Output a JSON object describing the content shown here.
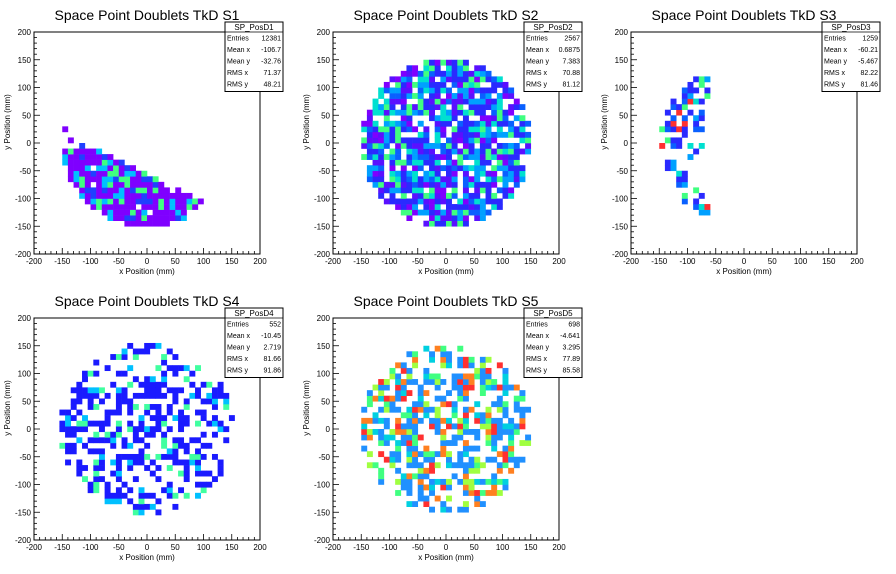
{
  "chart_data": [
    {
      "type": "heatmap",
      "title": "Space Point Doublets TkD S1",
      "xlabel": "x Position (mm)",
      "ylabel": "y Position (mm)",
      "xlim": [
        -200,
        200
      ],
      "ylim": [
        -200,
        200
      ],
      "xticks": [
        "-200",
        "-150",
        "-100",
        "-50",
        "0",
        "50",
        "100",
        "150",
        "200"
      ],
      "yticks": [
        "-200",
        "-150",
        "-100",
        "-50",
        "0",
        "50",
        "100",
        "150",
        "200"
      ],
      "stats": {
        "name": "SP_PosD1",
        "rows": [
          {
            "label": "Entries",
            "value": "12381"
          },
          {
            "label": "Mean x",
            "value": "-106.7"
          },
          {
            "label": "Mean y",
            "value": "-32.76"
          },
          {
            "label": "RMS x",
            "value": "71.37"
          },
          {
            "label": "RMS y",
            "value": "48.21"
          }
        ]
      },
      "pattern": "lower-band",
      "density": 0.95,
      "radius_mm": 150,
      "colors": [
        "#7f00ff",
        "#7f00ff",
        "#7f00ff",
        "#7f00ff",
        "#7f00ff",
        "#2040ff",
        "#00c0ff",
        "#40ff80"
      ]
    },
    {
      "type": "heatmap",
      "title": "Space Point Doublets TkD S2",
      "xlabel": "x Position (mm)",
      "ylabel": "y Position (mm)",
      "xlim": [
        -200,
        200
      ],
      "ylim": [
        -200,
        200
      ],
      "xticks": [
        "-200",
        "-150",
        "-100",
        "-50",
        "0",
        "50",
        "100",
        "150",
        "200"
      ],
      "yticks": [
        "-200",
        "-150",
        "-100",
        "-50",
        "0",
        "50",
        "100",
        "150",
        "200"
      ],
      "stats": {
        "name": "SP_PosD2",
        "rows": [
          {
            "label": "Entries",
            "value": "2567"
          },
          {
            "label": "Mean x",
            "value": "0.6875"
          },
          {
            "label": "Mean y",
            "value": "7.383"
          },
          {
            "label": "RMS x",
            "value": "70.88"
          },
          {
            "label": "RMS y",
            "value": "81.12"
          }
        ]
      },
      "pattern": "full-disk",
      "density": 0.8,
      "radius_mm": 150,
      "colors": [
        "#7f00ff",
        "#5a10ff",
        "#2a2aff",
        "#2a2aff",
        "#0a60ff",
        "#00a0ff",
        "#00e0d0",
        "#40ff80"
      ]
    },
    {
      "type": "heatmap",
      "title": "Space Point Doublets TkD S3",
      "xlabel": "x Position (mm)",
      "ylabel": "y Position (mm)",
      "xlim": [
        -200,
        200
      ],
      "ylim": [
        -200,
        200
      ],
      "xticks": [
        "-200",
        "-150",
        "-100",
        "-50",
        "0",
        "50",
        "100",
        "150",
        "200"
      ],
      "yticks": [
        "-200",
        "-150",
        "-100",
        "-50",
        "0",
        "50",
        "100",
        "150",
        "200"
      ],
      "stats": {
        "name": "SP_PosD3",
        "rows": [
          {
            "label": "Entries",
            "value": "1259"
          },
          {
            "label": "Mean x",
            "value": "-60.21"
          },
          {
            "label": "Mean y",
            "value": "-5.467"
          },
          {
            "label": "RMS x",
            "value": "82.22"
          },
          {
            "label": "RMS y",
            "value": "81.46"
          }
        ]
      },
      "pattern": "left-arc",
      "density": 0.45,
      "radius_mm": 150,
      "colors": [
        "#2a2aff",
        "#2a2aff",
        "#2a2aff",
        "#0a60ff",
        "#00a0ff",
        "#00e0d0",
        "#40ff80",
        "#ff3030"
      ]
    },
    {
      "type": "heatmap",
      "title": "Space Point Doublets TkD S4",
      "xlabel": "x Position (mm)",
      "ylabel": "y Position (mm)",
      "xlim": [
        -200,
        200
      ],
      "ylim": [
        -200,
        200
      ],
      "xticks": [
        "-200",
        "-150",
        "-100",
        "-50",
        "0",
        "50",
        "100",
        "150",
        "200"
      ],
      "yticks": [
        "-200",
        "-150",
        "-100",
        "-50",
        "0",
        "50",
        "100",
        "150",
        "200"
      ],
      "stats": {
        "name": "SP_PosD4",
        "rows": [
          {
            "label": "Entries",
            "value": "552"
          },
          {
            "label": "Mean x",
            "value": "-10.45"
          },
          {
            "label": "Mean y",
            "value": "2.719"
          },
          {
            "label": "RMS x",
            "value": "81.66"
          },
          {
            "label": "RMS y",
            "value": "91.86"
          }
        ]
      },
      "pattern": "sparse",
      "density": 0.45,
      "radius_mm": 155,
      "colors": [
        "#1a1aff",
        "#1a1aff",
        "#1a1aff",
        "#1a1aff",
        "#1a1aff",
        "#1a1aff",
        "#00c0ff",
        "#40ffa0"
      ]
    },
    {
      "type": "heatmap",
      "title": "Space Point Doublets TkD S5",
      "xlabel": "x Position (mm)",
      "ylabel": "y Position (mm)",
      "xlim": [
        -200,
        200
      ],
      "ylim": [
        -200,
        200
      ],
      "xticks": [
        "-200",
        "-150",
        "-100",
        "-50",
        "0",
        "50",
        "100",
        "150",
        "200"
      ],
      "yticks": [
        "-200",
        "-150",
        "-100",
        "-50",
        "0",
        "50",
        "100",
        "150",
        "200"
      ],
      "stats": {
        "name": "SP_PosD5",
        "rows": [
          {
            "label": "Entries",
            "value": "698"
          },
          {
            "label": "Mean x",
            "value": "-4.641"
          },
          {
            "label": "Mean y",
            "value": "3.295"
          },
          {
            "label": "RMS x",
            "value": "77.89"
          },
          {
            "label": "RMS y",
            "value": "85.58"
          }
        ]
      },
      "pattern": "sparse",
      "density": 0.55,
      "radius_mm": 150,
      "colors": [
        "#2090ff",
        "#2090ff",
        "#2090ff",
        "#2090ff",
        "#00d0e0",
        "#40ff80",
        "#a0ff40",
        "#ff8020",
        "#ff3030"
      ]
    }
  ]
}
